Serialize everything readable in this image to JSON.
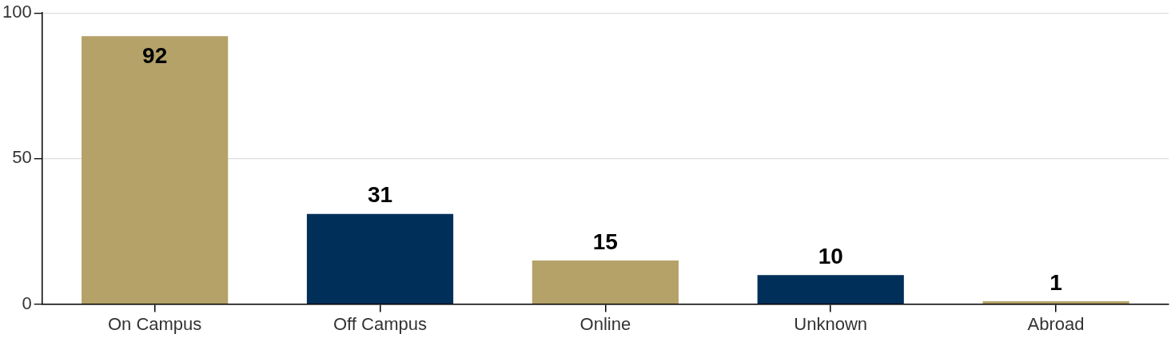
{
  "chart_data": {
    "type": "bar",
    "categories": [
      "On Campus",
      "Off Campus",
      "Online",
      "Unknown",
      "Abroad"
    ],
    "values": [
      92,
      31,
      15,
      10,
      1
    ],
    "colors": [
      "#b5a269",
      "#002f5a",
      "#b5a269",
      "#002f5a",
      "#b5a269"
    ],
    "ylim": [
      0,
      100
    ],
    "yticks": [
      0,
      50,
      100
    ],
    "grid": "y",
    "legend": false,
    "data_labels": true
  }
}
